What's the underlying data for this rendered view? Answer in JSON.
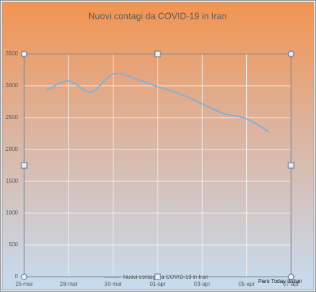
{
  "chart_data": {
    "type": "line",
    "title": "Nuovi contagi da COVID-19 in Iran",
    "categories": [
      "26-mar",
      null,
      "28-mar",
      null,
      "30-mar",
      null,
      "01-apr",
      null,
      "03-apr",
      null,
      "05-apr",
      null,
      "07-apr"
    ],
    "series": [
      {
        "name": "Nuovi contagi da COVID-19 in Iran",
        "color": "#7fb0dc",
        "values": [
          null,
          2926,
          3076,
          2901,
          3186,
          3110,
          2987,
          2875,
          2715,
          2560,
          2483,
          2274,
          null
        ]
      }
    ],
    "ylim": [
      0,
      3500
    ],
    "yticks": [
      0,
      500,
      1000,
      1500,
      2000,
      2500,
      3000,
      3500
    ],
    "grid": true,
    "annotation": "Pars Today Italian"
  }
}
